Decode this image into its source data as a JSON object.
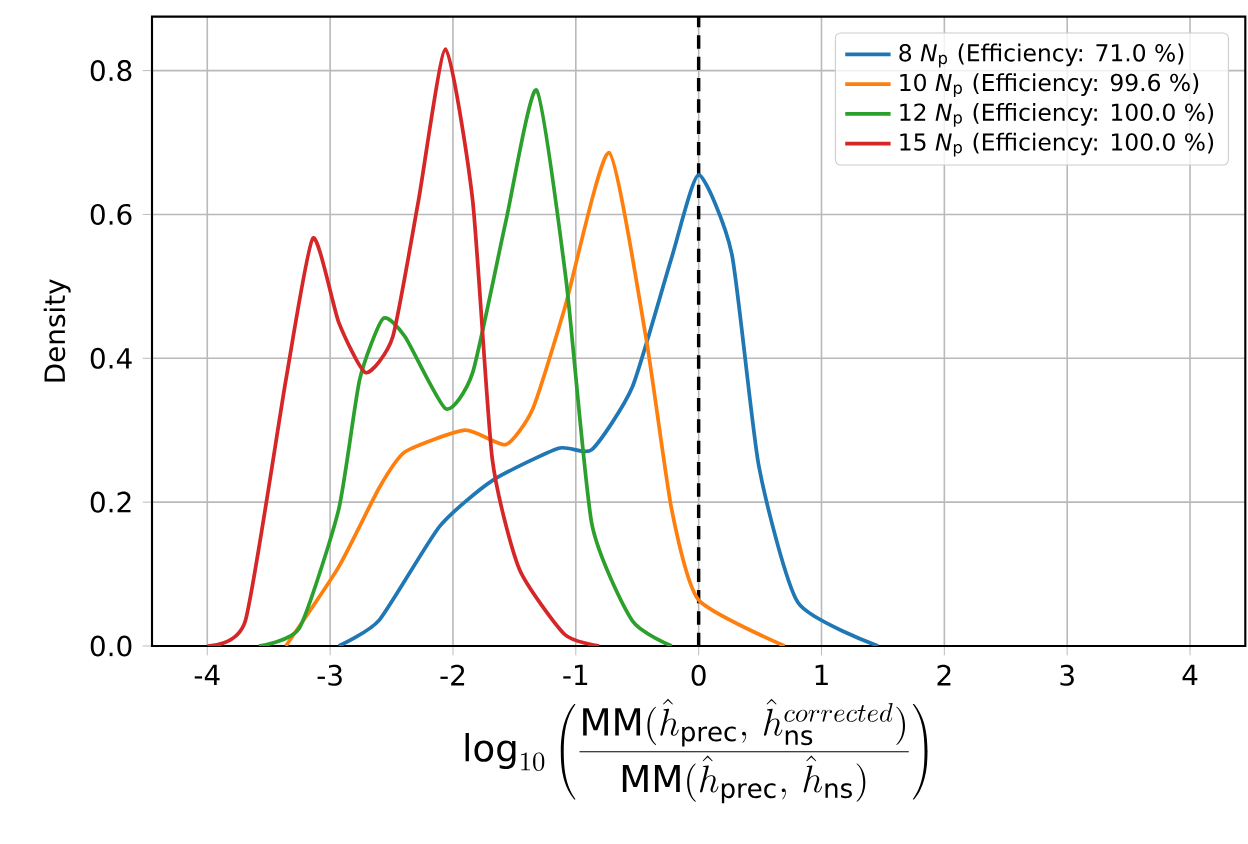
{
  "chart_data": {
    "type": "line",
    "xlabel": "\\log_{10}\\left(\\frac{\\mathrm{MM}(\\hat{h}_{\\mathrm{prec}},\\,\\hat{h}_{\\mathrm{ns}}^{corrected})}{\\mathrm{MM}(\\hat{h}_{\\mathrm{prec}},\\,\\hat{h}_{\\mathrm{ns}})}\\right)",
    "ylabel": "Density",
    "series": [
      {
        "name": "8 *N*$_{p}$ (Efficiency: 71.0 %)",
        "color": "#1f77b4",
        "x": [
          -2.93,
          -2.6,
          -2.11,
          -1.68,
          -1.14,
          -0.87,
          -0.54,
          -0.22,
          0,
          0.27,
          0.49,
          0.81,
          1.46
        ],
        "values": [
          0,
          0.036,
          0.166,
          0.23,
          0.275,
          0.273,
          0.36,
          0.54,
          0.655,
          0.545,
          0.25,
          0.06,
          0
        ]
      },
      {
        "name": "10  *N*$_{p}$ (Efficiency: 99.6 %)",
        "color": "#ff7f0e",
        "x": [
          -3.36,
          -2.93,
          -2.6,
          -2.39,
          -1.9,
          -1.57,
          -1.35,
          -1.09,
          -0.73,
          -0.43,
          -0.22,
          0,
          0.7
        ],
        "values": [
          0,
          0.11,
          0.22,
          0.27,
          0.3,
          0.28,
          0.33,
          0.47,
          0.686,
          0.43,
          0.19,
          0.064,
          0
        ]
      },
      {
        "name": "12  *N*$_{p}$ (Efficiency: 100.0 %)",
        "color": "#2ca02c",
        "x": [
          -3.58,
          -3.25,
          -2.93,
          -2.76,
          -2.57,
          -2.39,
          -2.06,
          -1.84,
          -1.57,
          -1.32,
          -1.08,
          -0.87,
          -0.54,
          -0.22
        ],
        "values": [
          0,
          0.025,
          0.19,
          0.37,
          0.455,
          0.43,
          0.33,
          0.38,
          0.59,
          0.773,
          0.51,
          0.17,
          0.035,
          0
        ]
      },
      {
        "name": "15  *N*$_{p}$ (Efficiency: 100.0 %)",
        "color": "#d62728",
        "x": [
          -4.0,
          -3.69,
          -3.36,
          -3.14,
          -2.93,
          -2.71,
          -2.49,
          -2.28,
          -2.06,
          -1.84,
          -1.68,
          -1.46,
          -1.09,
          -0.81
        ],
        "values": [
          0,
          0.035,
          0.37,
          0.567,
          0.45,
          0.38,
          0.43,
          0.62,
          0.83,
          0.62,
          0.26,
          0.107,
          0.016,
          0
        ]
      }
    ],
    "xlim": [
      -4.45,
      4.45
    ],
    "ylim": [
      0,
      0.875
    ],
    "xticks": [
      -4,
      -3,
      -2,
      -1,
      0,
      1,
      2,
      3,
      4
    ],
    "yticks": [
      {
        "value": 0,
        "label": "0.0"
      },
      0.2,
      0.4,
      0.6,
      0.8
    ],
    "ref_lines": [
      {
        "axis": "x",
        "value": 0,
        "color": "#000000",
        "line_style": "dashed"
      }
    ],
    "grid": true,
    "legend": "top right",
    "line_style": "solid",
    "marker": "none"
  }
}
